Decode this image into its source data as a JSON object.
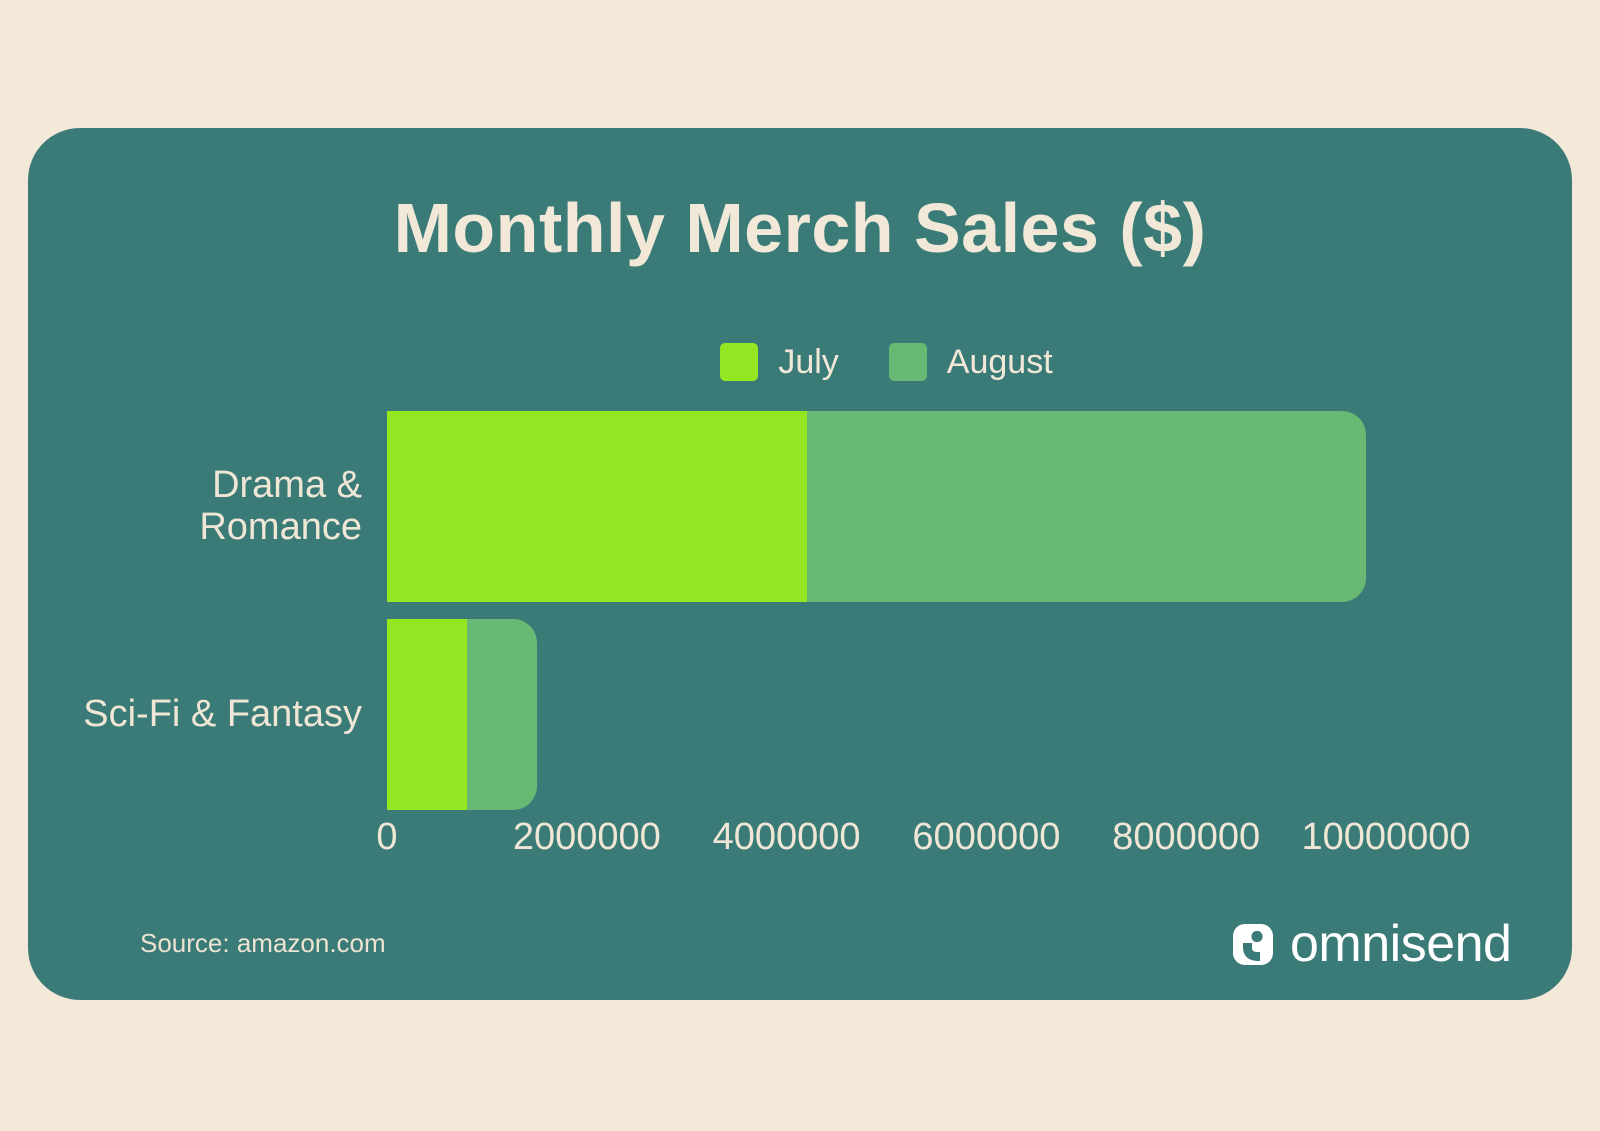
{
  "title": "Monthly Merch Sales ($)",
  "source_note": "Source: amazon.com",
  "brand": {
    "name": "omnisend",
    "icon": "omnisend-i-mark"
  },
  "colors": {
    "page_background": "#F3E9D9",
    "card_background": "#3A7B78",
    "july_green": "#95E723",
    "august_green": "#67B973",
    "text_cream": "#F2E8D8",
    "logo_white": "#FFFFFF"
  },
  "legend": {
    "position": "top-center",
    "items": [
      {
        "label": "July",
        "color": "#95E723"
      },
      {
        "label": "August",
        "color": "#67B973"
      }
    ]
  },
  "chart_data": {
    "type": "bar",
    "orientation": "horizontal",
    "stacked": true,
    "title": "Monthly Merch Sales ($)",
    "categories": [
      "Drama & Romance",
      "Sci-Fi & Fantasy"
    ],
    "series": [
      {
        "name": "July",
        "color": "#95E723",
        "values": [
          4200000,
          800000
        ]
      },
      {
        "name": "August",
        "color": "#67B973",
        "values": [
          5600000,
          700000
        ]
      }
    ],
    "xlim": [
      0,
      10000000
    ],
    "x_ticks": [
      0,
      2000000,
      4000000,
      6000000,
      8000000,
      10000000
    ],
    "x_tick_labels": [
      "0",
      "2000000",
      "4000000",
      "6000000",
      "8000000",
      "10000000"
    ],
    "xlabel": "",
    "ylabel": "",
    "grid": false,
    "legend_position": "top-center"
  }
}
